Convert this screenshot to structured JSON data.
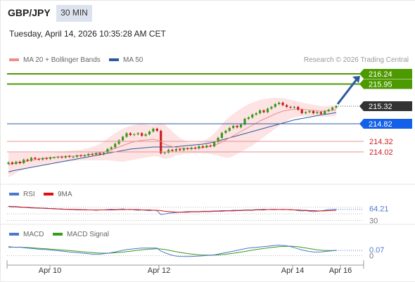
{
  "header": {
    "symbol": "GBP/JPY",
    "timeframe": "30 MIN",
    "timestamp": "Tuesday, April 14, 2026 10:35:28 AM CET"
  },
  "legends": {
    "main": [
      {
        "label": "MA 20 + Bollinger Bands",
        "color": "#f08c8c"
      },
      {
        "label": "MA 50",
        "color": "#2c5aa0"
      }
    ],
    "rsi": [
      {
        "label": "RSI",
        "color": "#4a78d0"
      },
      {
        "label": "9MA",
        "color": "#e01010"
      }
    ],
    "macd": [
      {
        "label": "MACD",
        "color": "#4a78d0"
      },
      {
        "label": "MACD Signal",
        "color": "#3a9a1a"
      }
    ]
  },
  "credit": "Research © 2026 Trading Central",
  "colors": {
    "target": "#4c9a00",
    "pivot": "#2c5aa0",
    "support": "#d02020",
    "current": "#333333",
    "candle_up": "#3a9a1a",
    "candle_down": "#c81e1e",
    "bollinger_fill": "#fde3e3",
    "arrow": "#2c5aa0"
  },
  "chart_data": [
    {
      "type": "candlestick",
      "panel": "price",
      "x_tick_labels": [
        "Apr 10",
        "Apr 12",
        "Apr 14",
        "Apr 16"
      ],
      "ylim": [
        213.2,
        216.5
      ],
      "levels": [
        {
          "value": 216.24,
          "label": "216.24",
          "kind": "target"
        },
        {
          "value": 215.95,
          "label": "215.95",
          "kind": "target"
        },
        {
          "value": 215.32,
          "label": "215.32",
          "kind": "current"
        },
        {
          "value": 214.82,
          "label": "214.82",
          "kind": "pivot"
        },
        {
          "value": 214.32,
          "label": "214.32",
          "kind": "support"
        },
        {
          "value": 214.02,
          "label": "214.02",
          "kind": "support"
        }
      ],
      "close": [
        213.72,
        213.68,
        213.74,
        213.7,
        213.8,
        213.77,
        213.85,
        213.82,
        213.8,
        213.84,
        213.82,
        213.86,
        213.86,
        213.88,
        213.86,
        213.9,
        213.88,
        213.88,
        213.92,
        213.9,
        213.92,
        213.96,
        213.94,
        213.98,
        213.95,
        214.0,
        214.1,
        214.15,
        214.25,
        214.35,
        214.45,
        214.55,
        214.5,
        214.52,
        214.55,
        214.48,
        214.52,
        214.6,
        214.68,
        214.62,
        213.98,
        214.0,
        214.08,
        214.05,
        214.1,
        214.07,
        214.12,
        214.1,
        214.14,
        214.12,
        214.18,
        214.15,
        214.2,
        214.18,
        214.3,
        214.42,
        214.56,
        214.62,
        214.7,
        214.76,
        214.72,
        214.8,
        214.96,
        215.0,
        215.08,
        215.12,
        215.2,
        215.15,
        215.25,
        215.3,
        215.38,
        215.42,
        215.35,
        215.3,
        215.28,
        215.3,
        215.22,
        215.12,
        215.15,
        215.18,
        215.12,
        215.15,
        215.1,
        215.18,
        215.22,
        215.28,
        215.32
      ],
      "ma20": [
        213.65,
        213.68,
        213.7,
        213.72,
        213.74,
        213.76,
        213.78,
        213.8,
        213.82,
        213.84,
        213.85,
        213.86,
        213.87,
        213.88,
        213.88,
        213.89,
        213.9,
        213.9,
        213.91,
        213.92,
        213.93,
        213.94,
        213.96,
        213.98,
        214.0,
        214.02,
        214.05,
        214.08,
        214.12,
        214.16,
        214.2,
        214.24,
        214.28,
        214.31,
        214.33,
        214.35,
        214.36,
        214.37,
        214.38,
        214.36,
        214.3,
        214.24,
        214.2,
        214.17,
        214.15,
        214.13,
        214.12,
        214.12,
        214.12,
        214.12,
        214.13,
        214.14,
        214.16,
        214.18,
        214.21,
        214.25,
        214.3,
        214.36,
        214.42,
        214.48,
        214.54,
        214.6,
        214.66,
        214.72,
        214.78,
        214.84,
        214.9,
        214.95,
        215.0,
        215.05,
        215.1,
        215.14,
        215.18,
        215.2,
        215.22,
        215.23,
        215.24,
        215.23,
        215.22,
        215.21,
        215.2,
        215.19,
        215.18,
        215.18,
        215.19,
        215.2,
        215.22
      ],
      "ma50": [
        213.45,
        213.48,
        213.5,
        213.52,
        213.54,
        213.56,
        213.58,
        213.6,
        213.62,
        213.64,
        213.66,
        213.68,
        213.7,
        213.72,
        213.74,
        213.76,
        213.78,
        213.8,
        213.82,
        213.84,
        213.86,
        213.88,
        213.9,
        213.92,
        213.94,
        213.96,
        213.98,
        214.0,
        214.02,
        214.04,
        214.06,
        214.08,
        214.1,
        214.11,
        214.12,
        214.13,
        214.14,
        214.15,
        214.16,
        214.16,
        214.16,
        214.16,
        214.16,
        214.16,
        214.17,
        214.18,
        214.19,
        214.2,
        214.21,
        214.22,
        214.23,
        214.24,
        214.26,
        214.28,
        214.3,
        214.33,
        214.36,
        214.39,
        214.42,
        214.45,
        214.48,
        214.51,
        214.54,
        214.57,
        214.6,
        214.63,
        214.66,
        214.69,
        214.72,
        214.75,
        214.78,
        214.81,
        214.84,
        214.87,
        214.9,
        214.93,
        214.95,
        214.97,
        214.99,
        215.01,
        215.03,
        215.05,
        215.07,
        215.09,
        215.1,
        215.12,
        215.14
      ],
      "boll_upper": [
        214.0,
        214.0,
        214.0,
        214.0,
        214.0,
        214.0,
        214.0,
        214.0,
        214.0,
        214.0,
        214.0,
        214.0,
        214.0,
        214.02,
        214.02,
        214.04,
        214.05,
        214.06,
        214.07,
        214.08,
        214.1,
        214.13,
        214.16,
        214.2,
        214.25,
        214.32,
        214.4,
        214.48,
        214.55,
        214.62,
        214.68,
        214.72,
        214.76,
        214.78,
        214.8,
        214.82,
        214.8,
        214.78,
        214.78,
        214.8,
        214.82,
        214.8,
        214.7,
        214.6,
        214.5,
        214.42,
        214.36,
        214.3,
        214.28,
        214.28,
        214.3,
        214.32,
        214.38,
        214.45,
        214.55,
        214.66,
        214.8,
        214.92,
        215.02,
        215.1,
        215.18,
        215.25,
        215.32,
        215.38,
        215.42,
        215.46,
        215.5,
        215.52,
        215.54,
        215.55,
        215.56,
        215.56,
        215.55,
        215.53,
        215.5,
        215.48,
        215.45,
        215.42,
        215.4,
        215.38,
        215.36,
        215.34,
        215.33,
        215.32,
        215.33,
        215.34,
        215.36
      ],
      "boll_lower": [
        213.3,
        213.35,
        213.42,
        213.48,
        213.52,
        213.55,
        213.58,
        213.6,
        213.62,
        213.64,
        213.66,
        213.68,
        213.7,
        213.72,
        213.73,
        213.74,
        213.75,
        213.76,
        213.77,
        213.78,
        213.78,
        213.78,
        213.78,
        213.78,
        213.78,
        213.78,
        213.78,
        213.77,
        213.76,
        213.75,
        213.74,
        213.76,
        213.78,
        213.8,
        213.82,
        213.84,
        213.86,
        213.88,
        213.9,
        213.9,
        213.86,
        213.82,
        213.84,
        213.88,
        213.92,
        213.94,
        213.96,
        213.97,
        213.98,
        213.98,
        213.98,
        213.98,
        213.97,
        213.96,
        213.94,
        213.92,
        213.88,
        213.86,
        213.86,
        213.9,
        213.96,
        214.02,
        214.08,
        214.14,
        214.2,
        214.28,
        214.36,
        214.44,
        214.52,
        214.6,
        214.68,
        214.76,
        214.84,
        214.9,
        214.96,
        215.0,
        215.02,
        215.03,
        215.04,
        215.04,
        215.04,
        215.04,
        215.03,
        215.02,
        215.02,
        215.03,
        215.05
      ]
    },
    {
      "type": "line",
      "panel": "rsi",
      "ylim": [
        25,
        80
      ],
      "levels": [
        {
          "value": 70
        },
        {
          "value": 50
        },
        {
          "value": 30,
          "label": "30"
        }
      ],
      "last_label": "64.21",
      "series": [
        {
          "name": "RSI",
          "values": [
            72,
            71,
            71,
            70,
            70,
            69,
            68,
            68,
            67,
            67,
            66,
            66,
            65,
            65,
            64,
            64,
            63,
            63,
            62,
            62,
            63,
            62,
            62,
            61,
            62,
            62,
            63,
            64,
            63,
            64,
            65,
            63,
            64,
            62,
            61,
            62,
            61,
            60,
            61,
            60,
            48,
            50,
            52,
            53,
            54,
            55,
            56,
            57,
            57,
            57,
            57,
            58,
            58,
            58,
            59,
            59,
            60,
            60,
            60,
            61,
            61,
            61,
            62,
            62,
            62,
            63,
            63,
            64,
            63,
            64,
            64,
            63,
            64,
            63,
            62,
            62,
            60,
            59,
            60,
            58,
            57,
            58,
            59,
            61,
            63,
            64,
            64
          ]
        },
        {
          "name": "9MA",
          "values": [
            73,
            72,
            72,
            71,
            70,
            70,
            69,
            68,
            68,
            67,
            67,
            66,
            66,
            65,
            65,
            64,
            64,
            64,
            63,
            63,
            62,
            62,
            62,
            62,
            62,
            62,
            62,
            62,
            62,
            63,
            63,
            63,
            63,
            63,
            63,
            62,
            62,
            62,
            61,
            61,
            60,
            58,
            57,
            56,
            55,
            55,
            55,
            55,
            56,
            56,
            56,
            57,
            57,
            57,
            58,
            58,
            58,
            59,
            59,
            59,
            60,
            60,
            61,
            61,
            61,
            62,
            62,
            62,
            63,
            63,
            63,
            63,
            63,
            63,
            63,
            62,
            62,
            61,
            61,
            60,
            60,
            59,
            59,
            59,
            60,
            60,
            61
          ]
        }
      ]
    },
    {
      "type": "line",
      "panel": "macd",
      "ylim": [
        -0.06,
        0.2
      ],
      "levels": [
        {
          "value": 0,
          "label": "0"
        }
      ],
      "last_label": "0.07",
      "series": [
        {
          "name": "MACD",
          "values": [
            0.12,
            0.115,
            0.11,
            0.115,
            0.105,
            0.1,
            0.095,
            0.09,
            0.085,
            0.082,
            0.08,
            0.075,
            0.07,
            0.065,
            0.06,
            0.055,
            0.05,
            0.045,
            0.04,
            0.035,
            0.03,
            0.025,
            0.02,
            0.02,
            0.02,
            0.025,
            0.03,
            0.04,
            0.05,
            0.06,
            0.07,
            0.08,
            0.085,
            0.09,
            0.095,
            0.1,
            0.1,
            0.1,
            0.1,
            0.1,
            0.06,
            0.04,
            0.02,
            0.005,
            -0.005,
            -0.01,
            -0.012,
            -0.012,
            -0.01,
            -0.008,
            -0.005,
            -0.002,
            0.002,
            0.005,
            0.01,
            0.02,
            0.03,
            0.04,
            0.05,
            0.06,
            0.07,
            0.08,
            0.09,
            0.1,
            0.105,
            0.11,
            0.115,
            0.12,
            0.125,
            0.13,
            0.135,
            0.14,
            0.135,
            0.13,
            0.12,
            0.105,
            0.09,
            0.075,
            0.065,
            0.055,
            0.05,
            0.048,
            0.05,
            0.055,
            0.06,
            0.065,
            0.07
          ]
        },
        {
          "name": "MACD Signal",
          "values": [
            0.11,
            0.112,
            0.112,
            0.111,
            0.11,
            0.107,
            0.104,
            0.1,
            0.097,
            0.093,
            0.09,
            0.086,
            0.083,
            0.079,
            0.075,
            0.071,
            0.067,
            0.063,
            0.059,
            0.054,
            0.05,
            0.045,
            0.041,
            0.037,
            0.034,
            0.033,
            0.033,
            0.035,
            0.038,
            0.042,
            0.047,
            0.053,
            0.059,
            0.065,
            0.071,
            0.077,
            0.082,
            0.086,
            0.089,
            0.092,
            0.088,
            0.081,
            0.072,
            0.062,
            0.052,
            0.043,
            0.035,
            0.027,
            0.021,
            0.016,
            0.011,
            0.008,
            0.007,
            0.007,
            0.008,
            0.01,
            0.014,
            0.019,
            0.025,
            0.032,
            0.039,
            0.047,
            0.055,
            0.064,
            0.072,
            0.08,
            0.088,
            0.095,
            0.102,
            0.108,
            0.113,
            0.118,
            0.122,
            0.124,
            0.125,
            0.122,
            0.117,
            0.11,
            0.102,
            0.093,
            0.085,
            0.077,
            0.072,
            0.069,
            0.067,
            0.067,
            0.068
          ]
        }
      ]
    }
  ]
}
